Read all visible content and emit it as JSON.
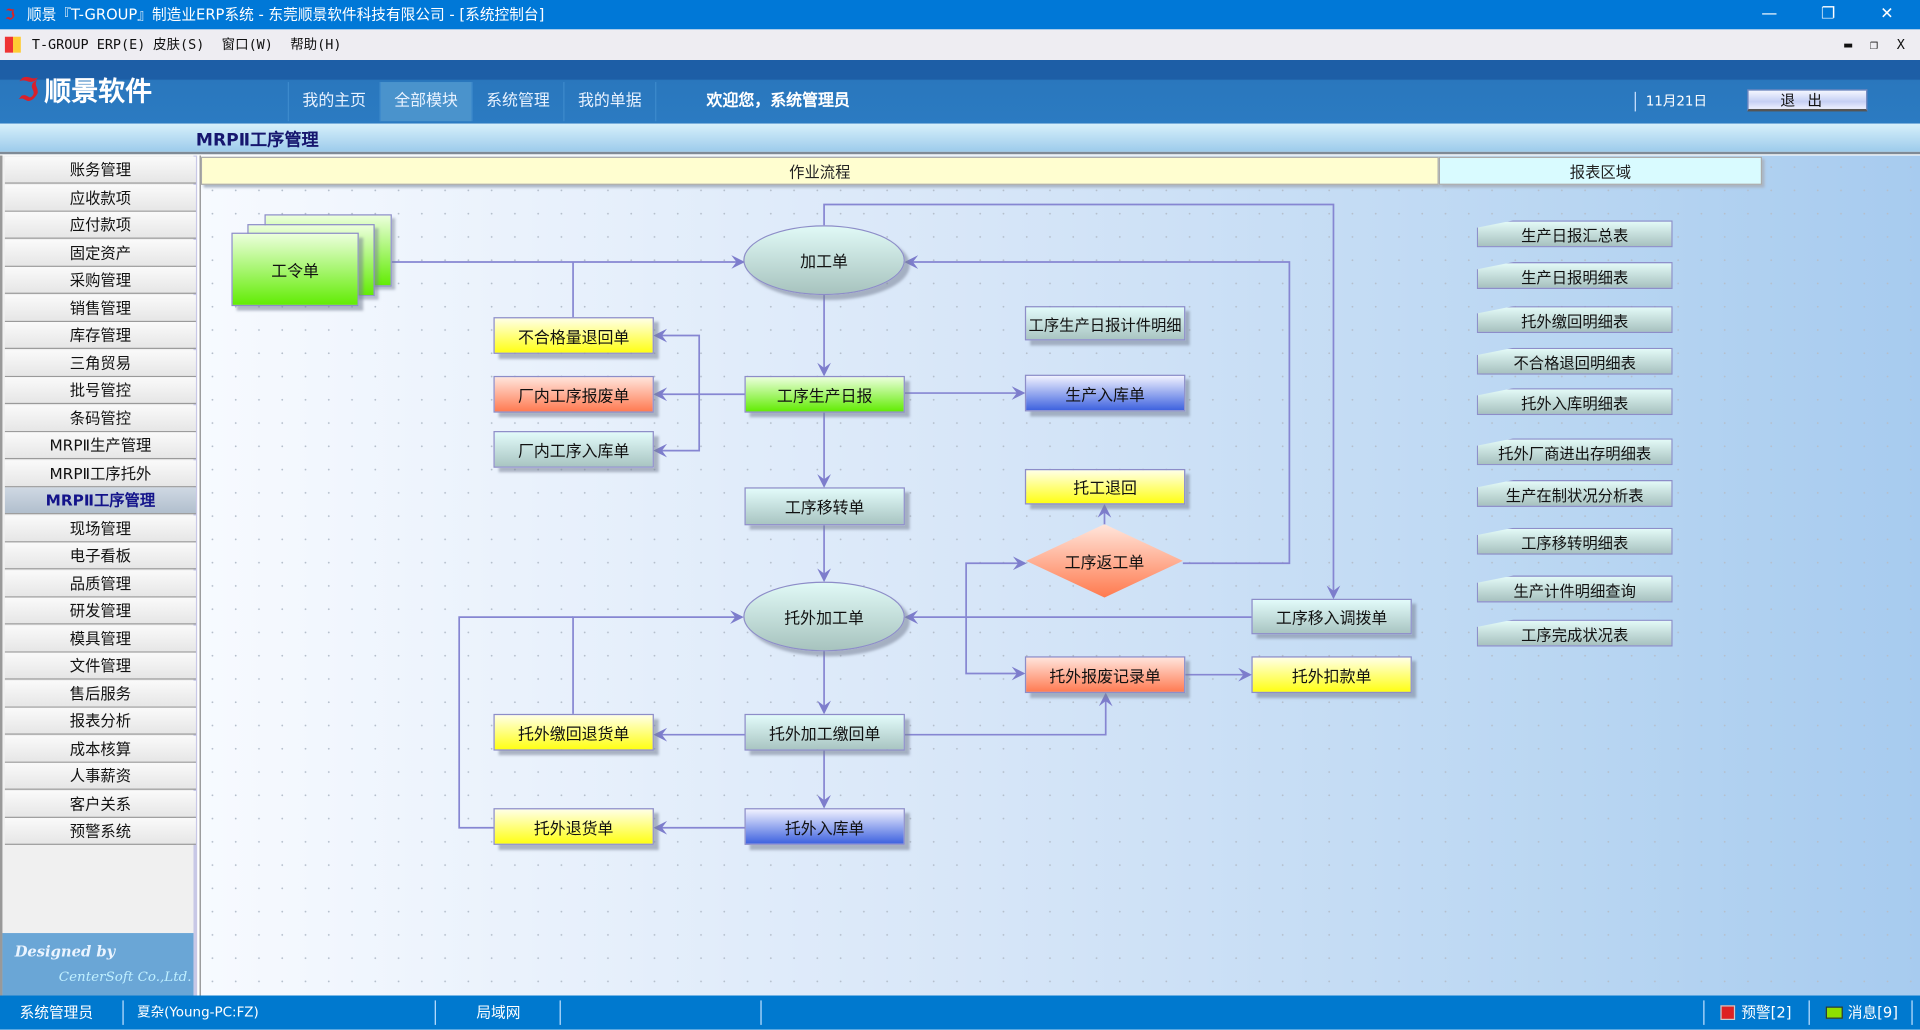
{
  "window": {
    "title": "顺景『T-GROUP』制造业ERP系统 - 东莞顺景软件科技有限公司 - [系统控制台]",
    "minimize": "—",
    "restore": "❐",
    "close": "✕"
  },
  "menubar": {
    "items": [
      "T-GROUP ERP(E)",
      "皮肤(S)",
      "窗口(W)",
      "帮助(H)"
    ],
    "mdi_min": "▬",
    "mdi_restore": "❐",
    "mdi_close": "X"
  },
  "header": {
    "logo": "顺景软件",
    "tabs": [
      {
        "label": "我的主页"
      },
      {
        "label": "全部模块",
        "active": true
      },
      {
        "label": "系统管理"
      },
      {
        "label": "我的单据"
      }
    ],
    "welcome": "欢迎您，系统管理员",
    "date": "11月21日",
    "exit": "退出"
  },
  "page_title": "MRPⅡ工序管理",
  "sidebar": {
    "items": [
      "账务管理",
      "应收款项",
      "应付款项",
      "固定资产",
      "采购管理",
      "销售管理",
      "库存管理",
      "三角贸易",
      "批号管控",
      "条码管控",
      "MRPⅡ生产管理",
      "MRPⅡ工序托外",
      "MRPⅡ工序管理",
      "现场管理",
      "电子看板",
      "品质管理",
      "研发管理",
      "模具管理",
      "文件管理",
      "售后服务",
      "报表分析",
      "成本核算",
      "人事薪资",
      "客户关系",
      "预警系统"
    ],
    "active": "MRPⅡ工序管理",
    "designed_by": "Designed by",
    "company": "CenterSoft Co.,Ltd."
  },
  "sections": {
    "flow": "作业流程",
    "reports": "报表区域"
  },
  "flow": {
    "nodes": [
      "工令单",
      "加工单",
      "不合格量退回单",
      "厂内工序报废单",
      "厂内工序入库单",
      "工序生产日报",
      "工序移转单",
      "工序生产日报计件明细",
      "生产入库单",
      "托工退回",
      "工序返工单",
      "托外加工单",
      "工序移入调拨单",
      "托外报废记录单",
      "托外扣款单",
      "托外缴回退货单",
      "托外加工缴回单",
      "托外退货单",
      "托外入库单"
    ]
  },
  "reports": [
    "生产日报汇总表",
    "生产日报明细表",
    "托外缴回明细表",
    "不合格退回明细表",
    "托外入库明细表",
    "托外厂商进出存明细表",
    "生产在制状况分析表",
    "工序移转明细表",
    "生产计件明细查询",
    "工序完成状况表"
  ],
  "statusbar": {
    "user": "系统管理员",
    "host": "夏杂(Young-PC:FZ)",
    "network": "局域网",
    "alerts": "预警[2]",
    "messages": "消息[9]"
  },
  "colors": {
    "titlebar": "#0078d7",
    "header": "#1d5ea6",
    "statusbar": "#0079cf",
    "flow_header": "#fffed0",
    "report_header": "#d9fbff"
  }
}
